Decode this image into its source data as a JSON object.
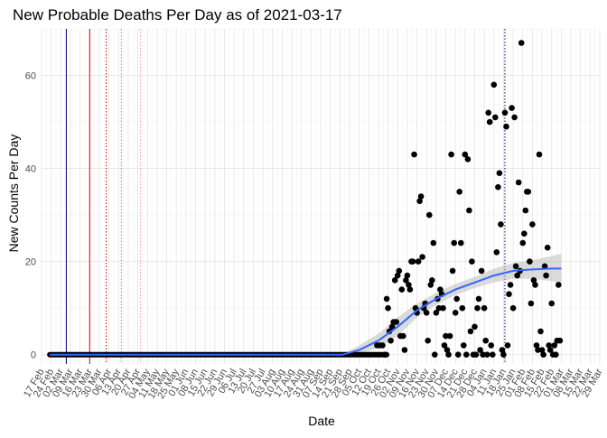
{
  "chart_data": {
    "type": "scatter",
    "title": "New Probable Deaths Per Day as of 2021-03-17",
    "xlabel": "Date",
    "ylabel": "New Counts Per Day",
    "xlim": [
      "2020-02-17",
      "2021-03-29"
    ],
    "ylim": [
      -2,
      70
    ],
    "y_ticks": [
      0,
      20,
      40,
      60
    ],
    "x_ticks": [
      "2020-02-17",
      "2020-02-24",
      "2020-03-02",
      "2020-03-09",
      "2020-03-16",
      "2020-03-23",
      "2020-03-30",
      "2020-04-06",
      "2020-04-13",
      "2020-04-20",
      "2020-04-27",
      "2020-05-04",
      "2020-05-11",
      "2020-05-18",
      "2020-05-25",
      "2020-06-01",
      "2020-06-08",
      "2020-06-15",
      "2020-06-22",
      "2020-06-29",
      "2020-07-06",
      "2020-07-13",
      "2020-07-20",
      "2020-07-27",
      "2020-08-03",
      "2020-08-10",
      "2020-08-17",
      "2020-08-24",
      "2020-08-31",
      "2020-09-07",
      "2020-09-14",
      "2020-09-21",
      "2020-09-28",
      "2020-10-05",
      "2020-10-12",
      "2020-10-19",
      "2020-10-26",
      "2020-11-02",
      "2020-11-09",
      "2020-11-16",
      "2020-11-23",
      "2020-11-30",
      "2020-12-07",
      "2020-12-14",
      "2020-12-21",
      "2020-12-28",
      "2021-01-04",
      "2021-01-11",
      "2021-01-18",
      "2021-01-25",
      "2021-02-01",
      "2021-02-08",
      "2021-02-15",
      "2021-02-22",
      "2021-03-01",
      "2021-03-08",
      "2021-03-15",
      "2021-03-22",
      "2021-03-29"
    ],
    "x_tick_labels": [
      "17 Feb",
      "24 Feb",
      "02 Mar",
      "09 Mar",
      "16 Mar",
      "23 Mar",
      "30 Mar",
      "06 Apr",
      "13 Apr",
      "20 Apr",
      "27 Apr",
      "04 May",
      "11 May",
      "18 May",
      "25 May",
      "01 Jun",
      "08 Jun",
      "15 Jun",
      "22 Jun",
      "29 Jun",
      "06 Jul",
      "13 Jul",
      "20 Jul",
      "27 Jul",
      "03 Aug",
      "10 Aug",
      "17 Aug",
      "24 Aug",
      "31 Aug",
      "07 Sep",
      "14 Sep",
      "21 Sep",
      "28 Sep",
      "05 Oct",
      "12 Oct",
      "19 Oct",
      "26 Oct",
      "02 Nov",
      "09 Nov",
      "16 Nov",
      "23 Nov",
      "30 Nov",
      "07 Dec",
      "14 Dec",
      "21 Dec",
      "28 Dec",
      "04 Jan",
      "11 Jan",
      "18 Jan",
      "25 Jan",
      "01 Feb",
      "08 Feb",
      "15 Feb",
      "22 Feb",
      "01 Mar",
      "08 Mar",
      "15 Mar",
      "22 Mar",
      "29 Mar"
    ],
    "grid": true,
    "vlines": [
      {
        "date": "2020-03-06",
        "color": "#000080",
        "style": "solid"
      },
      {
        "date": "2020-03-23",
        "color": "#cc0000",
        "style": "solid"
      },
      {
        "date": "2020-04-04",
        "color": "#cc0000",
        "style": "dotted"
      },
      {
        "date": "2020-04-15",
        "color": "#e07070",
        "style": "dotted"
      },
      {
        "date": "2020-04-29",
        "color": "#f0a0a0",
        "style": "dotted"
      },
      {
        "date": "2021-01-19",
        "color": "#000080",
        "style": "dotted"
      }
    ],
    "zero_run": {
      "from": "2020-02-23",
      "to": "2020-10-25",
      "y": 0
    },
    "series": [
      {
        "points": [
          [
            "2020-10-18",
            2
          ],
          [
            "2020-10-20",
            2
          ],
          [
            "2020-10-22",
            2
          ],
          [
            "2020-10-24",
            0
          ],
          [
            "2020-10-25",
            12
          ],
          [
            "2020-10-26",
            10
          ],
          [
            "2020-10-27",
            5
          ],
          [
            "2020-10-28",
            3
          ],
          [
            "2020-10-29",
            6
          ],
          [
            "2020-10-30",
            7
          ],
          [
            "2020-10-31",
            16
          ],
          [
            "2020-11-01",
            7
          ],
          [
            "2020-11-02",
            17
          ],
          [
            "2020-11-03",
            18
          ],
          [
            "2020-11-04",
            4
          ],
          [
            "2020-11-05",
            14
          ],
          [
            "2020-11-06",
            4
          ],
          [
            "2020-11-07",
            1
          ],
          [
            "2020-11-08",
            16
          ],
          [
            "2020-11-09",
            17
          ],
          [
            "2020-11-10",
            15
          ],
          [
            "2020-11-11",
            14
          ],
          [
            "2020-11-12",
            20
          ],
          [
            "2020-11-13",
            20
          ],
          [
            "2020-11-14",
            43
          ],
          [
            "2020-11-15",
            10
          ],
          [
            "2020-11-16",
            9
          ],
          [
            "2020-11-17",
            20
          ],
          [
            "2020-11-18",
            33
          ],
          [
            "2020-11-19",
            34
          ],
          [
            "2020-11-20",
            21
          ],
          [
            "2020-11-21",
            10
          ],
          [
            "2020-11-22",
            11
          ],
          [
            "2020-11-23",
            9
          ],
          [
            "2020-11-24",
            3
          ],
          [
            "2020-11-25",
            30
          ],
          [
            "2020-11-26",
            15
          ],
          [
            "2020-11-27",
            16
          ],
          [
            "2020-11-28",
            24
          ],
          [
            "2020-11-29",
            0
          ],
          [
            "2020-11-30",
            9
          ],
          [
            "2020-12-01",
            12
          ],
          [
            "2020-12-02",
            10
          ],
          [
            "2020-12-03",
            14
          ],
          [
            "2020-12-04",
            13
          ],
          [
            "2020-12-05",
            10
          ],
          [
            "2020-12-06",
            2
          ],
          [
            "2020-12-07",
            4
          ],
          [
            "2020-12-08",
            1
          ],
          [
            "2020-12-09",
            0
          ],
          [
            "2020-12-10",
            4
          ],
          [
            "2020-12-11",
            43
          ],
          [
            "2020-12-12",
            18
          ],
          [
            "2020-12-13",
            24
          ],
          [
            "2020-12-14",
            9
          ],
          [
            "2020-12-15",
            12
          ],
          [
            "2020-12-16",
            0
          ],
          [
            "2020-12-17",
            35
          ],
          [
            "2020-12-18",
            24
          ],
          [
            "2020-12-19",
            10
          ],
          [
            "2020-12-20",
            2
          ],
          [
            "2020-12-21",
            43
          ],
          [
            "2020-12-22",
            0
          ],
          [
            "2020-12-23",
            42
          ],
          [
            "2020-12-24",
            31
          ],
          [
            "2020-12-25",
            5
          ],
          [
            "2020-12-26",
            20
          ],
          [
            "2020-12-27",
            0
          ],
          [
            "2020-12-28",
            6
          ],
          [
            "2020-12-29",
            0
          ],
          [
            "2020-12-30",
            10
          ],
          [
            "2020-12-31",
            12
          ],
          [
            "2021-01-01",
            1
          ],
          [
            "2021-01-02",
            18
          ],
          [
            "2021-01-03",
            0
          ],
          [
            "2021-01-04",
            10
          ],
          [
            "2021-01-05",
            3
          ],
          [
            "2021-01-06",
            0
          ],
          [
            "2021-01-07",
            52
          ],
          [
            "2021-01-08",
            50
          ],
          [
            "2021-01-09",
            2
          ],
          [
            "2021-01-10",
            0
          ],
          [
            "2021-01-11",
            58
          ],
          [
            "2021-01-12",
            51
          ],
          [
            "2021-01-13",
            22
          ],
          [
            "2021-01-14",
            36
          ],
          [
            "2021-01-15",
            39
          ],
          [
            "2021-01-16",
            28
          ],
          [
            "2021-01-17",
            1
          ],
          [
            "2021-01-18",
            0
          ],
          [
            "2021-01-19",
            52
          ],
          [
            "2021-01-20",
            49
          ],
          [
            "2021-01-21",
            2
          ],
          [
            "2021-01-22",
            13
          ],
          [
            "2021-01-23",
            15
          ],
          [
            "2021-01-24",
            53
          ],
          [
            "2021-01-25",
            10
          ],
          [
            "2021-01-26",
            51
          ],
          [
            "2021-01-27",
            19
          ],
          [
            "2021-01-28",
            17
          ],
          [
            "2021-01-29",
            37
          ],
          [
            "2021-01-30",
            18
          ],
          [
            "2021-01-31",
            67
          ],
          [
            "2021-02-01",
            24
          ],
          [
            "2021-02-02",
            26
          ],
          [
            "2021-02-03",
            31
          ],
          [
            "2021-02-04",
            35
          ],
          [
            "2021-02-05",
            35
          ],
          [
            "2021-02-06",
            20
          ],
          [
            "2021-02-07",
            11
          ],
          [
            "2021-02-08",
            28
          ],
          [
            "2021-02-09",
            16
          ],
          [
            "2021-02-10",
            15
          ],
          [
            "2021-02-11",
            2
          ],
          [
            "2021-02-12",
            1
          ],
          [
            "2021-02-13",
            43
          ],
          [
            "2021-02-14",
            5
          ],
          [
            "2021-02-15",
            1
          ],
          [
            "2021-02-16",
            0
          ],
          [
            "2021-02-17",
            19
          ],
          [
            "2021-02-18",
            17
          ],
          [
            "2021-02-19",
            23
          ],
          [
            "2021-02-20",
            2
          ],
          [
            "2021-02-21",
            1
          ],
          [
            "2021-02-22",
            11
          ],
          [
            "2021-02-23",
            0
          ],
          [
            "2021-02-24",
            2
          ],
          [
            "2021-02-25",
            0
          ],
          [
            "2021-02-26",
            3
          ],
          [
            "2021-02-27",
            15
          ],
          [
            "2021-02-28",
            3
          ]
        ]
      }
    ],
    "trend": {
      "color": "#3366ff",
      "band_color": "#bdbdbd",
      "points": [
        [
          "2020-02-23",
          0,
          0,
          0
        ],
        [
          "2020-09-23",
          0,
          0,
          0
        ],
        [
          "2020-10-05",
          1,
          0,
          2
        ],
        [
          "2020-10-19",
          3,
          1.5,
          4.5
        ],
        [
          "2020-11-02",
          6,
          4,
          8
        ],
        [
          "2020-11-16",
          9.5,
          8,
          11
        ],
        [
          "2020-11-30",
          12,
          10.7,
          13.3
        ],
        [
          "2020-12-14",
          14,
          12.8,
          15.2
        ],
        [
          "2020-12-28",
          15.5,
          14.3,
          16.7
        ],
        [
          "2021-01-11",
          17,
          15.5,
          18.5
        ],
        [
          "2021-01-25",
          18,
          16.3,
          19.7
        ],
        [
          "2021-02-08",
          18.3,
          16.3,
          20.3
        ],
        [
          "2021-02-22",
          18.5,
          15.8,
          21.2
        ],
        [
          "2021-03-01",
          18.5,
          15.3,
          21.7
        ]
      ]
    }
  }
}
